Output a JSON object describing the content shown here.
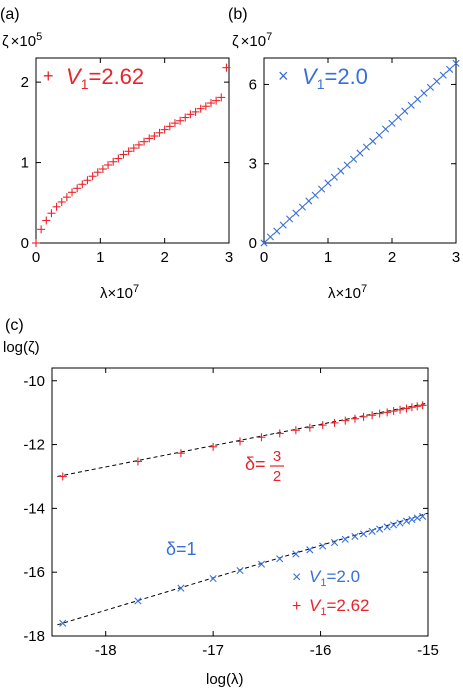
{
  "colors": {
    "red": "#e8242b",
    "blue": "#3a6fd8"
  },
  "panels": {
    "a": {
      "letter": "(a)"
    },
    "b": {
      "letter": "(b)"
    },
    "c": {
      "letter": "(c)"
    }
  },
  "chart_data": [
    {
      "id": "a",
      "type": "scatter",
      "ylabel": {
        "symbol": "ζ",
        "scale": "×10",
        "exp": "5"
      },
      "xlabel": {
        "symbol": "λ",
        "scale": "×10",
        "exp": "7"
      },
      "xlim": [
        0,
        3
      ],
      "ylim": [
        0,
        2.3
      ],
      "xticks": [
        0,
        1,
        2,
        3
      ],
      "yticks": [
        0,
        1,
        2
      ],
      "legend": {
        "marker": "+",
        "label_prefix": "V",
        "label_sub": "1",
        "label_value": "=2.62"
      },
      "marker": "+",
      "color": "red",
      "series": [
        {
          "x": [
            0.0,
            0.08,
            0.16,
            0.24,
            0.32,
            0.4,
            0.48,
            0.56,
            0.64,
            0.72,
            0.8,
            0.88,
            0.96,
            1.04,
            1.12,
            1.2,
            1.28,
            1.36,
            1.44,
            1.52,
            1.6,
            1.68,
            1.76,
            1.84,
            1.92,
            2.0,
            2.08,
            2.16,
            2.24,
            2.32,
            2.4,
            2.48,
            2.56,
            2.64,
            2.72,
            2.8,
            2.88,
            2.96
          ],
          "y": [
            0.0,
            0.17,
            0.28,
            0.37,
            0.45,
            0.51,
            0.57,
            0.63,
            0.68,
            0.73,
            0.78,
            0.83,
            0.88,
            0.92,
            0.97,
            1.01,
            1.05,
            1.1,
            1.14,
            1.18,
            1.22,
            1.26,
            1.3,
            1.33,
            1.37,
            1.41,
            1.45,
            1.49,
            1.52,
            1.56,
            1.6,
            1.63,
            1.67,
            1.7,
            1.74,
            1.77,
            1.81,
            2.18
          ]
        }
      ]
    },
    {
      "id": "b",
      "type": "scatter",
      "ylabel": {
        "symbol": "ζ",
        "scale": "×10",
        "exp": "7"
      },
      "xlabel": {
        "symbol": "λ",
        "scale": "×10",
        "exp": "7"
      },
      "xlim": [
        0,
        3
      ],
      "ylim": [
        0,
        7
      ],
      "xticks": [
        0,
        1,
        2,
        3
      ],
      "yticks": [
        0,
        3,
        6
      ],
      "legend": {
        "marker": "×",
        "label_prefix": "V",
        "label_sub": "1",
        "label_value": "=2.0"
      },
      "marker": "x",
      "color": "blue",
      "series": [
        {
          "x": [
            0.0,
            0.1,
            0.2,
            0.3,
            0.4,
            0.5,
            0.6,
            0.7,
            0.8,
            0.9,
            1.0,
            1.1,
            1.2,
            1.3,
            1.4,
            1.5,
            1.6,
            1.7,
            1.8,
            1.9,
            2.0,
            2.1,
            2.2,
            2.3,
            2.4,
            2.5,
            2.6,
            2.7,
            2.8,
            2.9,
            3.0
          ],
          "y": [
            0.0,
            0.23,
            0.45,
            0.68,
            0.91,
            1.13,
            1.36,
            1.59,
            1.81,
            2.04,
            2.27,
            2.49,
            2.72,
            2.95,
            3.17,
            3.4,
            3.63,
            3.85,
            4.08,
            4.31,
            4.53,
            4.76,
            4.99,
            5.21,
            5.44,
            5.67,
            5.89,
            6.12,
            6.35,
            6.57,
            6.8
          ]
        }
      ]
    },
    {
      "id": "c",
      "type": "scatter",
      "ylabel": "log(ζ)",
      "xlabel": "log(λ)",
      "xlim": [
        -18.5,
        -15
      ],
      "ylim": [
        -18,
        -9.6
      ],
      "xticks": [
        -18,
        -17,
        -16,
        -15
      ],
      "yticks": [
        -18,
        -16,
        -14,
        -12,
        -10
      ],
      "annotations": [
        {
          "text_prefix": "δ=",
          "numerator": "3",
          "denominator": "2",
          "color": "red"
        },
        {
          "text": "δ=1",
          "color": "blue"
        }
      ],
      "legend": [
        {
          "marker": "×",
          "label_prefix": "V",
          "label_sub": "1",
          "label_value": "=2.0",
          "color": "blue"
        },
        {
          "marker": "+",
          "label_prefix": "V",
          "label_sub": "1",
          "label_value": "=2.62",
          "color": "red"
        }
      ],
      "fits": [
        {
          "slope": 1.5,
          "x": [
            -18.45,
            -15.0
          ],
          "y": [
            -13.0,
            -10.7
          ]
        },
        {
          "slope": 1.0,
          "x": [
            -18.45,
            -15.0
          ],
          "y": [
            -17.65,
            -14.15
          ]
        }
      ],
      "series": [
        {
          "name": "V1=2.62",
          "marker": "+",
          "color": "red",
          "x": [
            -18.4,
            -17.7,
            -17.3,
            -17.0,
            -16.75,
            -16.55,
            -16.38,
            -16.23,
            -16.1,
            -15.98,
            -15.87,
            -15.77,
            -15.68,
            -15.6,
            -15.52,
            -15.45,
            -15.38,
            -15.32,
            -15.26,
            -15.2,
            -15.15,
            -15.1,
            -15.05
          ],
          "y": [
            -13.0,
            -12.53,
            -12.27,
            -12.07,
            -11.9,
            -11.77,
            -11.65,
            -11.55,
            -11.47,
            -11.39,
            -11.32,
            -11.25,
            -11.19,
            -11.13,
            -11.08,
            -11.03,
            -10.99,
            -10.95,
            -10.91,
            -10.87,
            -10.83,
            -10.8,
            -10.77
          ]
        },
        {
          "name": "V1=2.0",
          "marker": "x",
          "color": "blue",
          "x": [
            -18.4,
            -17.7,
            -17.3,
            -17.0,
            -16.75,
            -16.55,
            -16.38,
            -16.23,
            -16.1,
            -15.98,
            -15.87,
            -15.77,
            -15.68,
            -15.6,
            -15.52,
            -15.45,
            -15.38,
            -15.32,
            -15.26,
            -15.2,
            -15.15,
            -15.1,
            -15.05
          ],
          "y": [
            -17.6,
            -16.9,
            -16.5,
            -16.2,
            -15.95,
            -15.75,
            -15.58,
            -15.43,
            -15.3,
            -15.18,
            -15.07,
            -14.97,
            -14.88,
            -14.8,
            -14.72,
            -14.65,
            -14.58,
            -14.52,
            -14.46,
            -14.4,
            -14.35,
            -14.3,
            -14.25
          ]
        }
      ]
    }
  ]
}
